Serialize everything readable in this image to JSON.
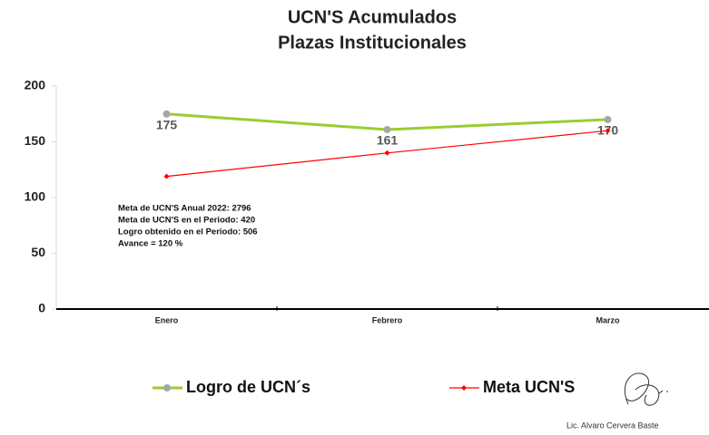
{
  "chart_data": {
    "type": "line",
    "title": [
      "UCN'S Acumulados",
      "Plazas Institucionales"
    ],
    "categories": [
      "Enero",
      "Febrero",
      "Marzo"
    ],
    "series": [
      {
        "name": "Logro de UCN´s",
        "color": "#9acd32",
        "marker_color": "#a6a6a6",
        "marker": "circle",
        "values": [
          175,
          161,
          170
        ],
        "value_labels": [
          "175",
          "161",
          "170"
        ]
      },
      {
        "name": "Meta UCN'S",
        "color": "#ff0000",
        "marker_color": "#ff0000",
        "marker": "diamond",
        "values": [
          119,
          140,
          160
        ]
      }
    ],
    "ylim": [
      0,
      200
    ],
    "yticks": [
      0,
      50,
      100,
      150,
      200
    ],
    "grid": false,
    "legend": "bottom",
    "annotations": [
      "Meta de UCN'S Anual 2022: 2796",
      "Meta de UCN'S en el Periodo: 420",
      "Logro obtenido en el Periodo: 506",
      "Avance = 120 %"
    ],
    "signature": "Lic. Alvaro Cervera Baste"
  }
}
